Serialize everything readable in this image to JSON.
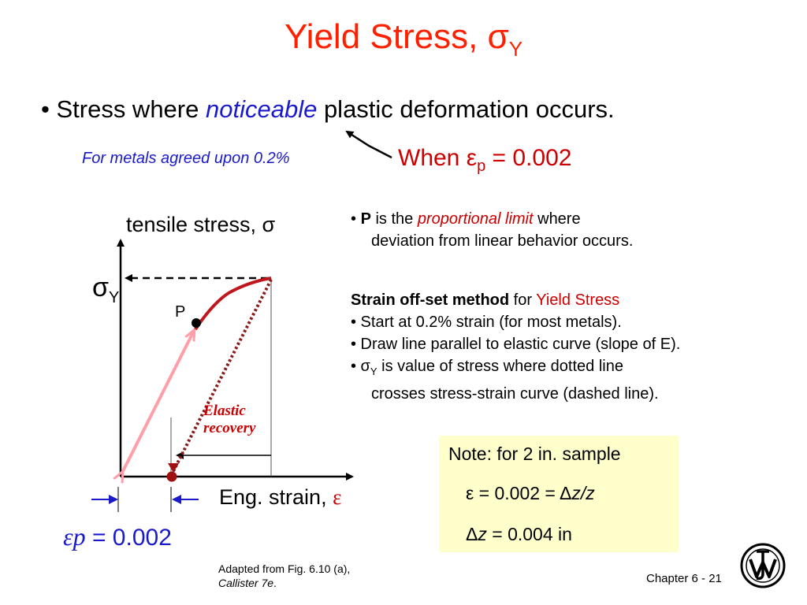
{
  "title": {
    "text": "Yield Stress, σ",
    "sub": "Y"
  },
  "bullet1": {
    "prefix": "• Stress where ",
    "emphasis": "noticeable",
    "suffix": " plastic deformation occurs."
  },
  "metals_note": "For metals agreed upon 0.2%",
  "when_eq": {
    "prefix": "When ε",
    "sub": "p",
    "suffix": " = 0.002"
  },
  "graph": {
    "ylabel": "tensile stress, σ",
    "sigma_y": {
      "text": "σ",
      "sub": "Y"
    },
    "p_label": "P",
    "elastic_line1": "Elastic",
    "elastic_line2": "recovery",
    "xlabel": "Eng. strain, ",
    "xlabel_symbol": "ε",
    "ep_symbol": "εp",
    "ep_value": " = 0.002",
    "colors": {
      "elastic": "#ff9ea8",
      "plastic": "#c0161e",
      "offset": "#8b1a1a",
      "arrow": "#1a1acd"
    }
  },
  "right": {
    "p_bullet": {
      "bullet": "• ",
      "bold": "P",
      "mid": " is the ",
      "emphasis": "proportional limit",
      "end": " where",
      "line2": "deviation from linear behavior occurs."
    },
    "method": {
      "bold": "Strain off-set method",
      "mid": " for ",
      "red": "Yield Stress",
      "items": [
        "•  Start at 0.2% strain (for most metals).",
        "•  Draw line parallel to elastic curve (slope of E)."
      ],
      "item3_a": "•  σ",
      "item3_sub": "Y",
      "item3_b": "  is value of stress where dotted line",
      "item3_line2": "crosses stress-strain curve (dashed line)."
    }
  },
  "note": {
    "line1": "Note: for 2 in. sample",
    "line2_a": "ε = 0.002 = Δ",
    "line2_b": "z/z",
    "line3_a": "Δ",
    "line3_b": "z",
    "line3_c": " = 0.004 in"
  },
  "credit": {
    "line1": "Adapted from Fig. 6.10 (a),",
    "line2_a": "Callister 7e",
    "line2_b": "."
  },
  "chapter": "Chapter 6 -  21"
}
